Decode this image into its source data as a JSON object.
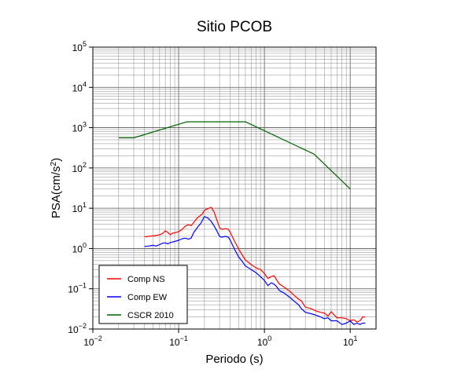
{
  "chart_data": {
    "type": "line",
    "title": "Sitio PCOB",
    "xlabel": "Periodo (s)",
    "ylabel": "PSA(cm/s²)",
    "ylabel_parts": {
      "prefix": "PSA(cm/s",
      "sup": "2",
      "suffix": ")"
    },
    "xscale": "log",
    "yscale": "log",
    "xlim": [
      0.01,
      20
    ],
    "ylim": [
      0.01,
      100000
    ],
    "grid": true,
    "legend_position": "bottom-left",
    "x_ticks": [
      {
        "base": "10",
        "exp": "−2"
      },
      {
        "base": "10",
        "exp": "−1"
      },
      {
        "base": "10",
        "exp": "0"
      },
      {
        "base": "10",
        "exp": "1"
      }
    ],
    "y_ticks": [
      {
        "base": "10",
        "exp": "−2"
      },
      {
        "base": "10",
        "exp": "−1"
      },
      {
        "base": "10",
        "exp": "0"
      },
      {
        "base": "10",
        "exp": "1"
      },
      {
        "base": "10",
        "exp": "2"
      },
      {
        "base": "10",
        "exp": "3"
      },
      {
        "base": "10",
        "exp": "4"
      },
      {
        "base": "10",
        "exp": "5"
      }
    ],
    "series": [
      {
        "name": "Comp NS",
        "color": "#ff0000",
        "points": [
          [
            0.04,
            1.95
          ],
          [
            0.045,
            2.0
          ],
          [
            0.05,
            2.05
          ],
          [
            0.055,
            2.1
          ],
          [
            0.06,
            2.2
          ],
          [
            0.065,
            2.35
          ],
          [
            0.07,
            2.75
          ],
          [
            0.075,
            2.5
          ],
          [
            0.08,
            2.2
          ],
          [
            0.085,
            2.4
          ],
          [
            0.09,
            2.45
          ],
          [
            0.1,
            2.6
          ],
          [
            0.11,
            3.0
          ],
          [
            0.12,
            3.6
          ],
          [
            0.13,
            3.9
          ],
          [
            0.14,
            3.7
          ],
          [
            0.15,
            4.4
          ],
          [
            0.16,
            5.3
          ],
          [
            0.17,
            6.1
          ],
          [
            0.18,
            6.6
          ],
          [
            0.19,
            7.3
          ],
          [
            0.2,
            8.9
          ],
          [
            0.22,
            9.8
          ],
          [
            0.24,
            10.5
          ],
          [
            0.26,
            8.0
          ],
          [
            0.28,
            5.0
          ],
          [
            0.3,
            3.3
          ],
          [
            0.32,
            3.0
          ],
          [
            0.35,
            3.1
          ],
          [
            0.38,
            3.0
          ],
          [
            0.4,
            2.5
          ],
          [
            0.45,
            1.5
          ],
          [
            0.5,
            0.98
          ],
          [
            0.55,
            0.7
          ],
          [
            0.6,
            0.52
          ],
          [
            0.7,
            0.4
          ],
          [
            0.8,
            0.33
          ],
          [
            0.9,
            0.3
          ],
          [
            1.0,
            0.24
          ],
          [
            1.1,
            0.18
          ],
          [
            1.2,
            0.2
          ],
          [
            1.3,
            0.21
          ],
          [
            1.4,
            0.16
          ],
          [
            1.5,
            0.13
          ],
          [
            1.7,
            0.11
          ],
          [
            2.0,
            0.085
          ],
          [
            2.2,
            0.07
          ],
          [
            2.5,
            0.055
          ],
          [
            2.7,
            0.05
          ],
          [
            3.0,
            0.035
          ],
          [
            3.5,
            0.032
          ],
          [
            4.0,
            0.028
          ],
          [
            4.5,
            0.026
          ],
          [
            5.0,
            0.025
          ],
          [
            5.5,
            0.021
          ],
          [
            6.0,
            0.027
          ],
          [
            7.0,
            0.019
          ],
          [
            8.0,
            0.019
          ],
          [
            9.0,
            0.018
          ],
          [
            10.0,
            0.016
          ],
          [
            11.0,
            0.017
          ],
          [
            12.0,
            0.015
          ],
          [
            13.0,
            0.016
          ],
          [
            14.0,
            0.02
          ],
          [
            15.0,
            0.02
          ]
        ]
      },
      {
        "name": "Comp EW",
        "color": "#0000ff",
        "points": [
          [
            0.04,
            1.12
          ],
          [
            0.045,
            1.15
          ],
          [
            0.05,
            1.2
          ],
          [
            0.055,
            1.15
          ],
          [
            0.06,
            1.25
          ],
          [
            0.065,
            1.35
          ],
          [
            0.07,
            1.38
          ],
          [
            0.075,
            1.3
          ],
          [
            0.08,
            1.4
          ],
          [
            0.085,
            1.45
          ],
          [
            0.09,
            1.5
          ],
          [
            0.1,
            1.6
          ],
          [
            0.11,
            1.75
          ],
          [
            0.12,
            1.8
          ],
          [
            0.13,
            1.7
          ],
          [
            0.14,
            1.8
          ],
          [
            0.15,
            2.5
          ],
          [
            0.16,
            3.0
          ],
          [
            0.17,
            3.6
          ],
          [
            0.18,
            4.1
          ],
          [
            0.19,
            5.1
          ],
          [
            0.2,
            6.2
          ],
          [
            0.22,
            5.7
          ],
          [
            0.24,
            4.7
          ],
          [
            0.26,
            3.6
          ],
          [
            0.28,
            2.7
          ],
          [
            0.3,
            2.0
          ],
          [
            0.32,
            1.9
          ],
          [
            0.35,
            2.0
          ],
          [
            0.38,
            1.9
          ],
          [
            0.4,
            1.6
          ],
          [
            0.45,
            0.95
          ],
          [
            0.5,
            0.62
          ],
          [
            0.55,
            0.48
          ],
          [
            0.6,
            0.37
          ],
          [
            0.7,
            0.3
          ],
          [
            0.8,
            0.25
          ],
          [
            0.9,
            0.2
          ],
          [
            1.0,
            0.16
          ],
          [
            1.1,
            0.12
          ],
          [
            1.2,
            0.14
          ],
          [
            1.3,
            0.13
          ],
          [
            1.4,
            0.11
          ],
          [
            1.5,
            0.09
          ],
          [
            1.7,
            0.078
          ],
          [
            2.0,
            0.06
          ],
          [
            2.2,
            0.05
          ],
          [
            2.5,
            0.04
          ],
          [
            2.7,
            0.032
          ],
          [
            3.0,
            0.026
          ],
          [
            3.5,
            0.024
          ],
          [
            4.0,
            0.022
          ],
          [
            4.5,
            0.02
          ],
          [
            5.0,
            0.018
          ],
          [
            5.5,
            0.019
          ],
          [
            6.0,
            0.016
          ],
          [
            7.0,
            0.016
          ],
          [
            8.0,
            0.013
          ],
          [
            9.0,
            0.014
          ],
          [
            10.0,
            0.016
          ],
          [
            11.0,
            0.013
          ],
          [
            12.0,
            0.014
          ],
          [
            13.0,
            0.013
          ],
          [
            14.0,
            0.014
          ],
          [
            15.0,
            0.014
          ]
        ]
      },
      {
        "name": "CSCR 2010",
        "color": "#006400",
        "points": [
          [
            0.02,
            560
          ],
          [
            0.03,
            560
          ],
          [
            0.125,
            1400
          ],
          [
            0.6,
            1400
          ],
          [
            3.8,
            220
          ],
          [
            10.0,
            30
          ]
        ]
      }
    ]
  }
}
